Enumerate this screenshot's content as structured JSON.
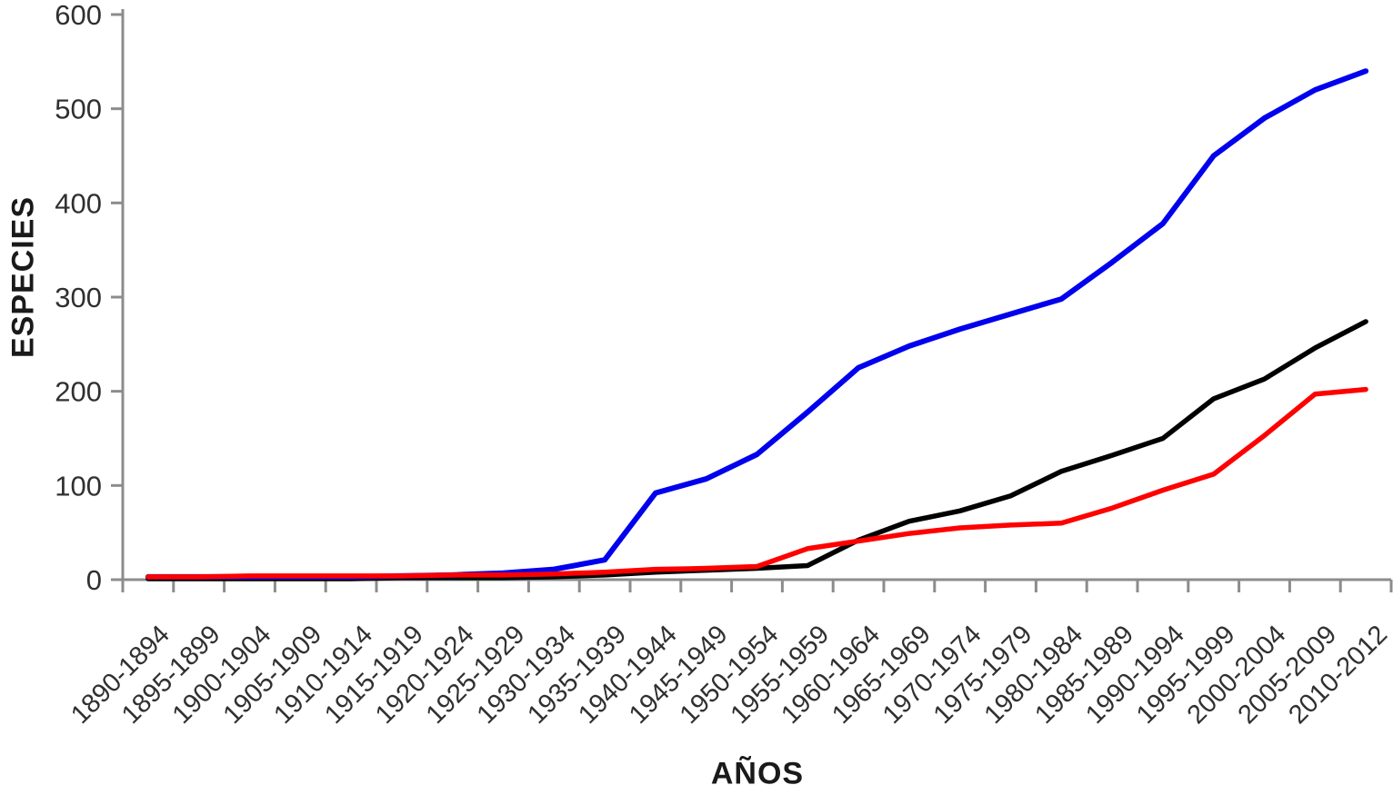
{
  "chart_data": {
    "type": "line",
    "title": "",
    "xlabel": "AÑOS",
    "ylabel": "ESPECIES",
    "ylim": [
      0,
      600
    ],
    "yticks": [
      0,
      100,
      200,
      300,
      400,
      500,
      600
    ],
    "grid": false,
    "legend_position": "none",
    "axis_color": "#8c8c8c",
    "tick_label_color": "#303030",
    "categories": [
      "1890-1894",
      "1895-1899",
      "1900-1904",
      "1905-1909",
      "1910-1914",
      "1915-1919",
      "1920-1924",
      "1925-1929",
      "1930-1934",
      "1935-1939",
      "1940-1944",
      "1945-1949",
      "1950-1954",
      "1955-1959",
      "1960-1964",
      "1965-1969",
      "1970-1974",
      "1975-1979",
      "1980-1984",
      "1985-1989",
      "1990-1994",
      "1995-1999",
      "2000-2004",
      "2005-2009",
      "2010-2012"
    ],
    "series": [
      {
        "name": "black",
        "color": "#000000",
        "values": [
          1,
          1,
          1,
          1,
          1,
          2,
          2,
          2,
          3,
          5,
          8,
          10,
          12,
          15,
          42,
          62,
          73,
          89,
          115,
          132,
          150,
          192,
          213,
          246,
          274
        ]
      },
      {
        "name": "blue",
        "color": "#0000ee",
        "values": [
          3,
          3,
          3,
          3,
          3,
          4,
          5,
          7,
          11,
          21,
          92,
          107,
          133,
          178,
          225,
          248,
          266,
          282,
          298,
          337,
          378,
          450,
          490,
          520,
          540
        ]
      },
      {
        "name": "red",
        "color": "#ff0000",
        "values": [
          3,
          3,
          4,
          4,
          4,
          4,
          5,
          5,
          6,
          8,
          11,
          12,
          14,
          33,
          41,
          49,
          55,
          58,
          60,
          76,
          95,
          112,
          153,
          197,
          202
        ]
      }
    ]
  }
}
